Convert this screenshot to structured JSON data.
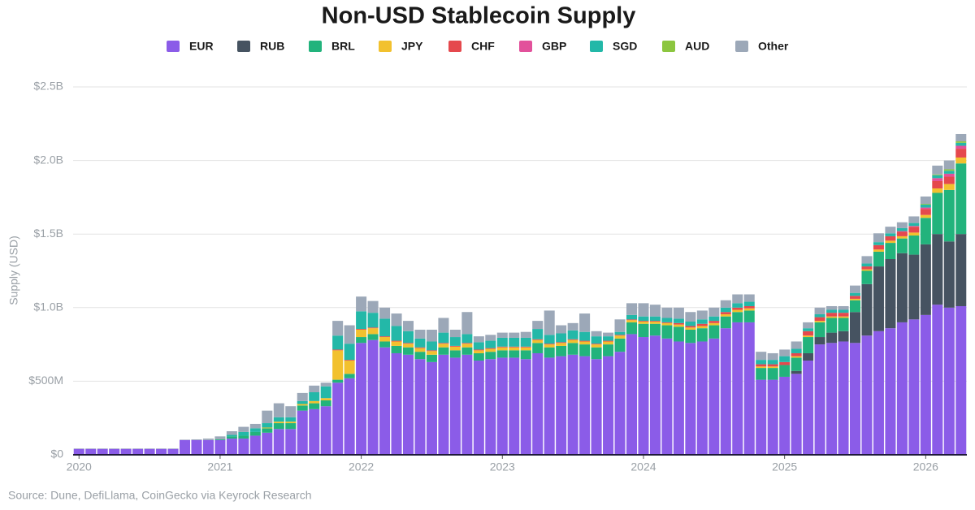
{
  "chart_data": {
    "type": "stacked_bar",
    "title": "Non-USD Stablecoin Supply",
    "ylabel": "Supply (USD)",
    "source": "Source: Dune, DefiLlama, CoinGecko via Keyrock Research",
    "ylim": [
      0,
      2500
    ],
    "yticks": [
      {
        "value": 0,
        "label": "$0"
      },
      {
        "value": 500,
        "label": "$500M"
      },
      {
        "value": 1000,
        "label": "$1.0B"
      },
      {
        "value": 1500,
        "label": "$1.5B"
      },
      {
        "value": 2000,
        "label": "$2.0B"
      },
      {
        "value": 2500,
        "label": "$2.5B"
      }
    ],
    "grid": true,
    "categories": [
      "2020",
      null,
      null,
      null,
      null,
      null,
      null,
      null,
      null,
      null,
      null,
      null,
      "2021",
      null,
      null,
      null,
      null,
      null,
      null,
      null,
      null,
      null,
      null,
      null,
      "2022",
      null,
      null,
      null,
      null,
      null,
      null,
      null,
      null,
      null,
      null,
      null,
      "2023",
      null,
      null,
      null,
      null,
      null,
      null,
      null,
      null,
      null,
      null,
      null,
      "2024",
      null,
      null,
      null,
      null,
      null,
      null,
      null,
      null,
      null,
      null,
      null,
      "2025",
      null,
      null,
      null,
      null,
      null,
      null,
      null,
      null,
      null,
      null,
      null,
      "2026",
      null,
      null,
      null
    ],
    "series": [
      {
        "name": "EUR",
        "color": "#8b5ce8",
        "values": [
          40,
          40,
          40,
          40,
          40,
          40,
          40,
          40,
          40,
          100,
          100,
          100,
          100,
          110,
          110,
          130,
          150,
          175,
          175,
          300,
          310,
          330,
          490,
          520,
          760,
          780,
          730,
          690,
          680,
          650,
          630,
          680,
          660,
          680,
          640,
          650,
          660,
          660,
          650,
          690,
          660,
          670,
          680,
          670,
          650,
          670,
          700,
          820,
          800,
          810,
          790,
          770,
          760,
          770,
          790,
          860,
          900,
          900,
          510,
          510,
          530,
          550,
          640,
          750,
          760,
          770,
          760,
          810,
          840,
          860,
          900,
          920,
          950,
          1020,
          1000,
          1010
        ]
      },
      {
        "name": "RUB",
        "color": "#465361",
        "values": [
          0,
          0,
          0,
          0,
          0,
          0,
          0,
          0,
          0,
          0,
          0,
          0,
          0,
          0,
          0,
          0,
          0,
          0,
          0,
          0,
          0,
          0,
          0,
          0,
          0,
          0,
          0,
          0,
          0,
          0,
          0,
          0,
          0,
          0,
          0,
          0,
          0,
          0,
          0,
          0,
          0,
          0,
          0,
          0,
          0,
          0,
          0,
          0,
          0,
          0,
          0,
          0,
          0,
          0,
          0,
          0,
          0,
          0,
          0,
          0,
          0,
          20,
          50,
          50,
          70,
          70,
          210,
          350,
          440,
          470,
          470,
          440,
          480,
          480,
          450,
          490
        ]
      },
      {
        "name": "BRL",
        "color": "#22b37c",
        "values": [
          0,
          0,
          0,
          0,
          0,
          0,
          0,
          0,
          0,
          0,
          0,
          0,
          5,
          15,
          20,
          25,
          30,
          40,
          40,
          35,
          40,
          40,
          20,
          30,
          40,
          40,
          40,
          50,
          50,
          50,
          50,
          50,
          50,
          50,
          50,
          50,
          50,
          50,
          60,
          70,
          70,
          70,
          80,
          80,
          80,
          80,
          90,
          80,
          90,
          80,
          90,
          100,
          90,
          90,
          90,
          80,
          70,
          80,
          80,
          80,
          80,
          90,
          110,
          100,
          100,
          90,
          80,
          90,
          100,
          110,
          100,
          130,
          180,
          280,
          350,
          480
        ]
      },
      {
        "name": "JPY",
        "color": "#f2c12e",
        "values": [
          0,
          0,
          0,
          0,
          0,
          0,
          0,
          0,
          0,
          0,
          0,
          0,
          0,
          0,
          0,
          0,
          5,
          10,
          10,
          10,
          15,
          15,
          200,
          90,
          50,
          40,
          30,
          30,
          25,
          25,
          25,
          25,
          25,
          25,
          20,
          20,
          20,
          20,
          20,
          20,
          20,
          20,
          20,
          20,
          20,
          20,
          20,
          15,
          15,
          15,
          15,
          15,
          15,
          15,
          15,
          15,
          15,
          15,
          10,
          10,
          0,
          10,
          10,
          10,
          10,
          10,
          10,
          10,
          15,
          15,
          15,
          20,
          20,
          30,
          40,
          40
        ]
      },
      {
        "name": "CHF",
        "color": "#e5484d",
        "values": [
          0,
          0,
          0,
          0,
          0,
          0,
          0,
          0,
          0,
          0,
          0,
          0,
          0,
          0,
          0,
          0,
          0,
          0,
          0,
          0,
          0,
          0,
          5,
          5,
          5,
          5,
          5,
          5,
          5,
          5,
          5,
          5,
          5,
          5,
          5,
          5,
          5,
          5,
          5,
          5,
          5,
          5,
          5,
          5,
          5,
          5,
          5,
          5,
          5,
          5,
          5,
          10,
          10,
          15,
          15,
          15,
          15,
          15,
          15,
          15,
          20,
          20,
          30,
          25,
          25,
          25,
          20,
          20,
          30,
          30,
          30,
          40,
          40,
          50,
          50,
          60
        ]
      },
      {
        "name": "GBP",
        "color": "#e2519b",
        "values": [
          0,
          0,
          0,
          0,
          0,
          0,
          0,
          0,
          0,
          0,
          0,
          0,
          0,
          0,
          0,
          0,
          0,
          0,
          0,
          0,
          0,
          0,
          0,
          0,
          0,
          0,
          0,
          0,
          0,
          0,
          0,
          0,
          0,
          0,
          0,
          0,
          0,
          0,
          0,
          0,
          0,
          0,
          0,
          0,
          0,
          0,
          0,
          0,
          0,
          0,
          0,
          0,
          0,
          0,
          0,
          0,
          0,
          0,
          0,
          0,
          0,
          0,
          0,
          0,
          0,
          0,
          0,
          0,
          0,
          0,
          5,
          5,
          10,
          20,
          20,
          20
        ]
      },
      {
        "name": "SGD",
        "color": "#23b8a8",
        "values": [
          0,
          0,
          0,
          0,
          0,
          0,
          0,
          0,
          0,
          0,
          0,
          0,
          0,
          10,
          25,
          25,
          30,
          30,
          30,
          20,
          60,
          80,
          95,
          110,
          120,
          100,
          120,
          100,
          80,
          60,
          60,
          70,
          60,
          60,
          50,
          50,
          60,
          60,
          60,
          70,
          60,
          60,
          60,
          60,
          50,
          30,
          20,
          30,
          30,
          30,
          30,
          30,
          30,
          30,
          30,
          30,
          30,
          30,
          30,
          30,
          40,
          30,
          20,
          20,
          20,
          20,
          20,
          20,
          20,
          20,
          20,
          20,
          20,
          20,
          20,
          20
        ]
      },
      {
        "name": "AUD",
        "color": "#8cc63f",
        "values": [
          0,
          0,
          0,
          0,
          0,
          0,
          0,
          0,
          0,
          0,
          0,
          0,
          0,
          0,
          0,
          0,
          0,
          0,
          0,
          0,
          0,
          0,
          0,
          0,
          0,
          0,
          0,
          0,
          0,
          0,
          0,
          0,
          0,
          0,
          0,
          0,
          0,
          0,
          0,
          0,
          0,
          0,
          0,
          0,
          0,
          0,
          0,
          0,
          0,
          0,
          0,
          0,
          0,
          0,
          0,
          0,
          0,
          0,
          0,
          0,
          0,
          0,
          0,
          0,
          0,
          0,
          0,
          0,
          0,
          0,
          0,
          0,
          5,
          5,
          10,
          10
        ]
      },
      {
        "name": "Other",
        "color": "#9ca8b8",
        "values": [
          3,
          3,
          3,
          3,
          3,
          3,
          3,
          3,
          3,
          3,
          5,
          10,
          20,
          25,
          35,
          30,
          85,
          95,
          75,
          55,
          45,
          25,
          100,
          125,
          100,
          80,
          75,
          85,
          70,
          60,
          80,
          100,
          50,
          150,
          40,
          40,
          35,
          35,
          40,
          55,
          165,
          55,
          50,
          125,
          35,
          25,
          85,
          80,
          90,
          80,
          70,
          75,
          65,
          60,
          60,
          50,
          60,
          50,
          55,
          45,
          45,
          50,
          40,
          45,
          25,
          25,
          50,
          50,
          60,
          45,
          40,
          45,
          50,
          60,
          60,
          50
        ]
      }
    ]
  }
}
